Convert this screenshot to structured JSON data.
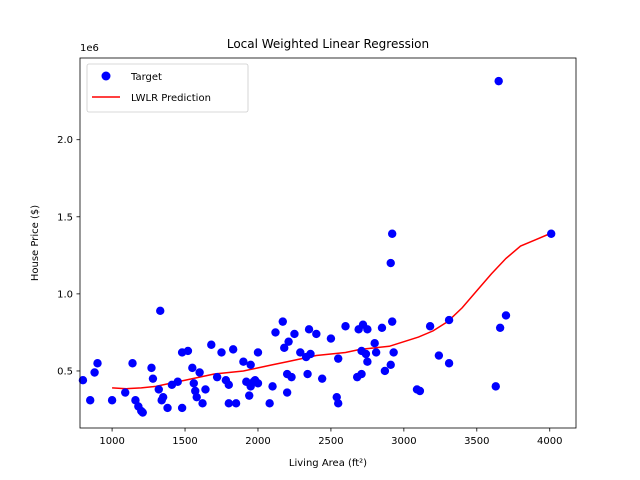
{
  "chart_data": {
    "type": "scatter",
    "title": "Local Weighted Linear Regression",
    "xlabel": "Living Area (ft²)",
    "ylabel": "House Price ($)",
    "offset_text": "1e6",
    "xlim": [
      780,
      4180
    ],
    "ylim": [
      0.13,
      2.53
    ],
    "x_ticks": [
      1000,
      1500,
      2000,
      2500,
      3000,
      3500,
      4000
    ],
    "x_tick_labels": [
      "1000",
      "1500",
      "2000",
      "2500",
      "3000",
      "3500",
      "4000"
    ],
    "y_ticks": [
      0.5,
      1.0,
      1.5,
      2.0
    ],
    "y_tick_labels": [
      "0.5",
      "1.0",
      "1.5",
      "2.0"
    ],
    "grid": false,
    "legend_position": "top-left",
    "colors": {
      "target": "#0000ff",
      "prediction": "#ff0000"
    },
    "series": [
      {
        "name": "Target",
        "kind": "scatter",
        "points": [
          [
            800,
            0.44
          ],
          [
            850,
            0.31
          ],
          [
            880,
            0.49
          ],
          [
            900,
            0.55
          ],
          [
            1000,
            0.31
          ],
          [
            1090,
            0.36
          ],
          [
            1140,
            0.55
          ],
          [
            1160,
            0.31
          ],
          [
            1180,
            0.27
          ],
          [
            1200,
            0.24
          ],
          [
            1210,
            0.23
          ],
          [
            1270,
            0.52
          ],
          [
            1280,
            0.45
          ],
          [
            1320,
            0.38
          ],
          [
            1330,
            0.89
          ],
          [
            1340,
            0.31
          ],
          [
            1350,
            0.33
          ],
          [
            1380,
            0.26
          ],
          [
            1410,
            0.41
          ],
          [
            1450,
            0.43
          ],
          [
            1480,
            0.26
          ],
          [
            1480,
            0.62
          ],
          [
            1520,
            0.63
          ],
          [
            1550,
            0.52
          ],
          [
            1560,
            0.42
          ],
          [
            1570,
            0.37
          ],
          [
            1580,
            0.33
          ],
          [
            1600,
            0.49
          ],
          [
            1620,
            0.29
          ],
          [
            1640,
            0.38
          ],
          [
            1680,
            0.67
          ],
          [
            1720,
            0.46
          ],
          [
            1750,
            0.62
          ],
          [
            1780,
            0.44
          ],
          [
            1800,
            0.41
          ],
          [
            1800,
            0.29
          ],
          [
            1830,
            0.64
          ],
          [
            1850,
            0.29
          ],
          [
            1900,
            0.56
          ],
          [
            1920,
            0.43
          ],
          [
            1940,
            0.34
          ],
          [
            1950,
            0.4
          ],
          [
            1950,
            0.54
          ],
          [
            1970,
            0.43
          ],
          [
            1980,
            0.44
          ],
          [
            2000,
            0.42
          ],
          [
            2000,
            0.62
          ],
          [
            2080,
            0.29
          ],
          [
            2100,
            0.4
          ],
          [
            2120,
            0.75
          ],
          [
            2170,
            0.82
          ],
          [
            2180,
            0.65
          ],
          [
            2200,
            0.48
          ],
          [
            2200,
            0.36
          ],
          [
            2210,
            0.69
          ],
          [
            2230,
            0.46
          ],
          [
            2250,
            0.74
          ],
          [
            2290,
            0.62
          ],
          [
            2330,
            0.59
          ],
          [
            2340,
            0.48
          ],
          [
            2350,
            0.77
          ],
          [
            2360,
            0.61
          ],
          [
            2400,
            0.74
          ],
          [
            2440,
            0.45
          ],
          [
            2500,
            0.71
          ],
          [
            2540,
            0.33
          ],
          [
            2550,
            0.29
          ],
          [
            2550,
            0.58
          ],
          [
            2600,
            0.79
          ],
          [
            2680,
            0.46
          ],
          [
            2690,
            0.77
          ],
          [
            2710,
            0.63
          ],
          [
            2710,
            0.48
          ],
          [
            2720,
            0.8
          ],
          [
            2740,
            0.61
          ],
          [
            2750,
            0.56
          ],
          [
            2750,
            0.77
          ],
          [
            2800,
            0.68
          ],
          [
            2810,
            0.62
          ],
          [
            2850,
            0.78
          ],
          [
            2870,
            0.5
          ],
          [
            2910,
            0.54
          ],
          [
            2910,
            1.2
          ],
          [
            2920,
            1.39
          ],
          [
            2920,
            0.82
          ],
          [
            2930,
            0.62
          ],
          [
            3090,
            0.38
          ],
          [
            3110,
            0.37
          ],
          [
            3180,
            0.79
          ],
          [
            3240,
            0.6
          ],
          [
            3310,
            0.83
          ],
          [
            3310,
            0.55
          ],
          [
            3630,
            0.4
          ],
          [
            3650,
            2.38
          ],
          [
            3660,
            0.78
          ],
          [
            3700,
            0.86
          ],
          [
            4010,
            1.39
          ]
        ]
      },
      {
        "name": "LWLR Prediction",
        "kind": "line",
        "points": [
          [
            1000,
            0.39
          ],
          [
            1100,
            0.385
          ],
          [
            1200,
            0.39
          ],
          [
            1300,
            0.4
          ],
          [
            1400,
            0.42
          ],
          [
            1500,
            0.44
          ],
          [
            1600,
            0.46
          ],
          [
            1700,
            0.48
          ],
          [
            1800,
            0.49
          ],
          [
            1900,
            0.5
          ],
          [
            2000,
            0.52
          ],
          [
            2100,
            0.54
          ],
          [
            2200,
            0.56
          ],
          [
            2300,
            0.58
          ],
          [
            2400,
            0.6
          ],
          [
            2500,
            0.61
          ],
          [
            2600,
            0.62
          ],
          [
            2700,
            0.64
          ],
          [
            2800,
            0.65
          ],
          [
            2900,
            0.66
          ],
          [
            3000,
            0.69
          ],
          [
            3100,
            0.72
          ],
          [
            3200,
            0.76
          ],
          [
            3300,
            0.82
          ],
          [
            3400,
            0.91
          ],
          [
            3500,
            1.02
          ],
          [
            3600,
            1.13
          ],
          [
            3700,
            1.23
          ],
          [
            3800,
            1.31
          ],
          [
            3900,
            1.35
          ],
          [
            4000,
            1.39
          ]
        ]
      }
    ]
  }
}
